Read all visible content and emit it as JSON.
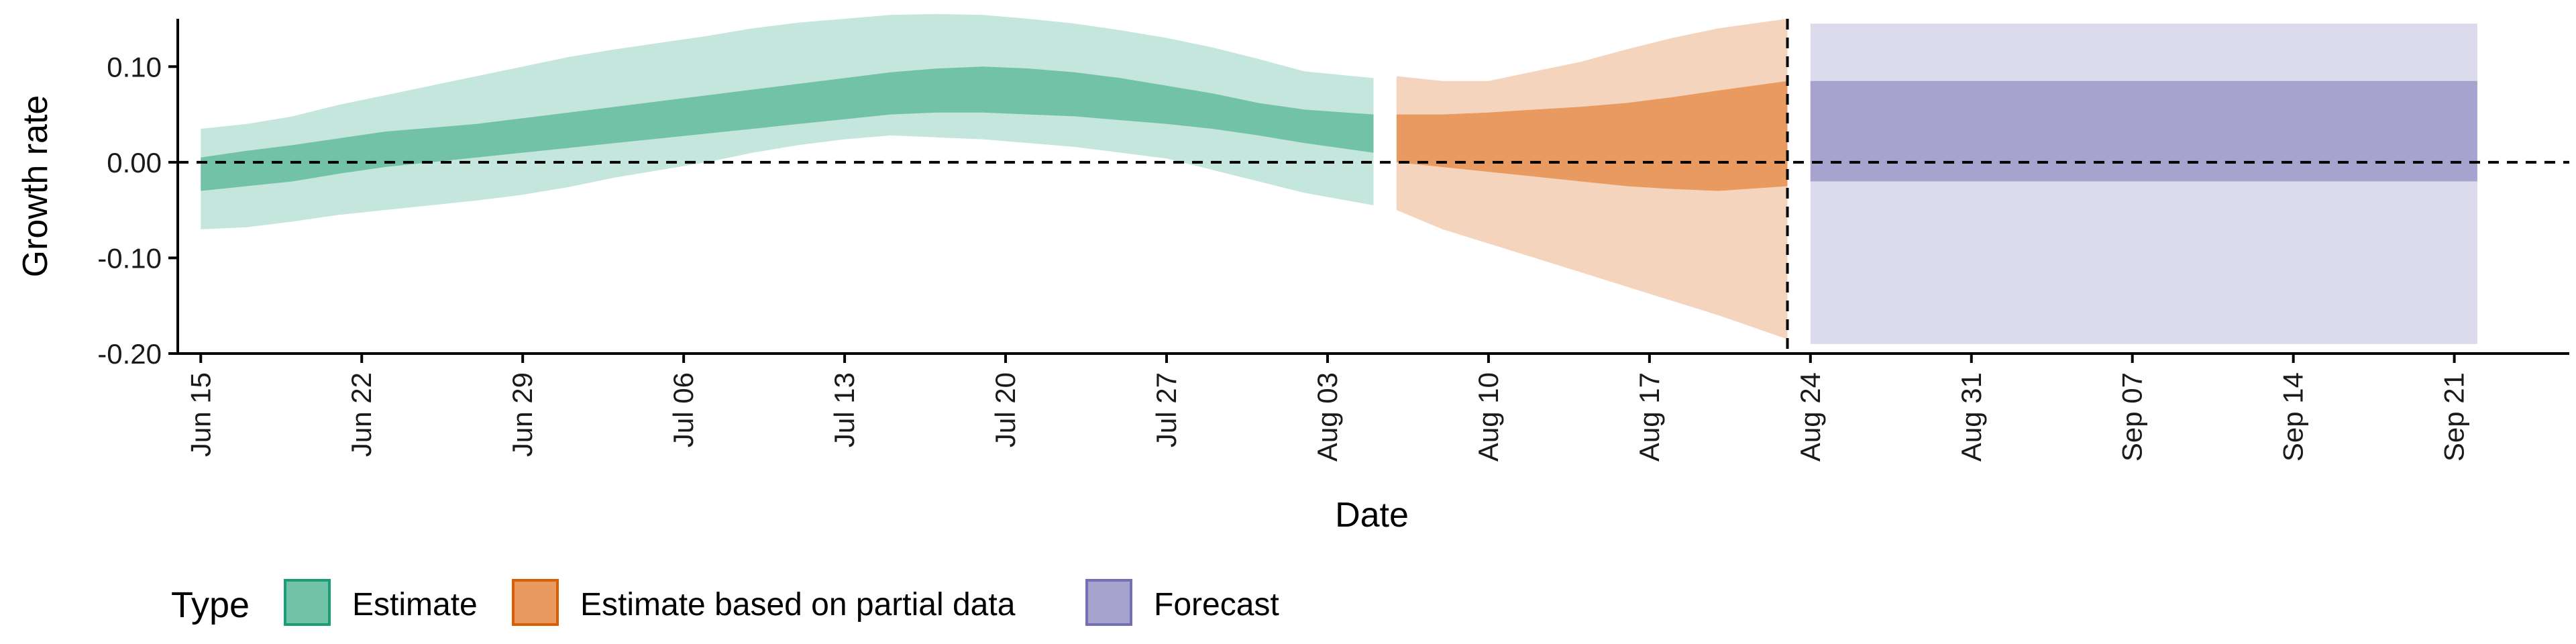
{
  "chart_data": {
    "type": "area",
    "xlabel": "Date",
    "ylabel": "Growth rate",
    "ylim": [
      -0.2,
      0.15
    ],
    "yticks": [
      -0.2,
      -0.1,
      0.0,
      0.1
    ],
    "ytick_labels": [
      "-0.20",
      "-0.10",
      "0.00",
      "0.10"
    ],
    "xticks": [
      "2020-06-15",
      "2020-06-22",
      "2020-06-29",
      "2020-07-06",
      "2020-07-13",
      "2020-07-20",
      "2020-07-27",
      "2020-08-03",
      "2020-08-10",
      "2020-08-17",
      "2020-08-24",
      "2020-08-31",
      "2020-09-07",
      "2020-09-14",
      "2020-09-21"
    ],
    "xtick_labels": [
      "Jun 15",
      "Jun 22",
      "Jun 29",
      "Jul 06",
      "Jul 13",
      "Jul 20",
      "Jul 27",
      "Aug 03",
      "Aug 10",
      "Aug 17",
      "Aug 24",
      "Aug 31",
      "Sep 07",
      "Sep 14",
      "Sep 21"
    ],
    "xlim": [
      "2020-06-14",
      "2020-09-26"
    ],
    "hline": 0,
    "vline": "2020-08-23",
    "grid": false,
    "legend_position": "bottom",
    "legend": {
      "title": "Type",
      "entries": [
        {
          "label": "Estimate",
          "fill": "#72c2a8",
          "border": "#1b9e77"
        },
        {
          "label": "Estimate based on partial data",
          "fill": "#e89a60",
          "border": "#d95f02"
        },
        {
          "label": "Forecast",
          "fill": "#a7a3cf",
          "border": "#7570b3"
        }
      ]
    },
    "series": [
      {
        "name": "Estimate",
        "outer_color": "#c4e6dc",
        "inner_color": "#72c2a8",
        "x": [
          "2020-06-15",
          "2020-06-17",
          "2020-06-19",
          "2020-06-21",
          "2020-06-23",
          "2020-06-25",
          "2020-06-27",
          "2020-06-29",
          "2020-07-01",
          "2020-07-03",
          "2020-07-05",
          "2020-07-07",
          "2020-07-09",
          "2020-07-11",
          "2020-07-13",
          "2020-07-15",
          "2020-07-17",
          "2020-07-19",
          "2020-07-21",
          "2020-07-23",
          "2020-07-25",
          "2020-07-27",
          "2020-07-29",
          "2020-07-31",
          "2020-08-02",
          "2020-08-05"
        ],
        "lower90": [
          -0.07,
          -0.068,
          -0.062,
          -0.055,
          -0.05,
          -0.045,
          -0.04,
          -0.034,
          -0.026,
          -0.016,
          -0.008,
          0.0,
          0.01,
          0.018,
          0.024,
          0.028,
          0.026,
          0.024,
          0.02,
          0.016,
          0.01,
          0.004,
          -0.008,
          -0.02,
          -0.032,
          -0.045
        ],
        "upper90": [
          0.035,
          0.04,
          0.048,
          0.06,
          0.07,
          0.08,
          0.09,
          0.1,
          0.11,
          0.118,
          0.125,
          0.132,
          0.14,
          0.146,
          0.15,
          0.154,
          0.155,
          0.154,
          0.15,
          0.145,
          0.138,
          0.13,
          0.12,
          0.108,
          0.095,
          0.088
        ],
        "lower50": [
          -0.03,
          -0.025,
          -0.02,
          -0.012,
          -0.005,
          0.0,
          0.005,
          0.01,
          0.015,
          0.02,
          0.025,
          0.03,
          0.035,
          0.04,
          0.045,
          0.05,
          0.052,
          0.052,
          0.05,
          0.048,
          0.044,
          0.04,
          0.035,
          0.028,
          0.02,
          0.01
        ],
        "upper50": [
          0.005,
          0.012,
          0.018,
          0.025,
          0.032,
          0.036,
          0.04,
          0.046,
          0.052,
          0.058,
          0.064,
          0.07,
          0.076,
          0.082,
          0.088,
          0.094,
          0.098,
          0.1,
          0.098,
          0.094,
          0.088,
          0.08,
          0.072,
          0.062,
          0.055,
          0.05
        ]
      },
      {
        "name": "Estimate based on partial data",
        "outer_color": "#f5d4bd",
        "inner_color": "#e89a60",
        "x": [
          "2020-08-06",
          "2020-08-08",
          "2020-08-10",
          "2020-08-12",
          "2020-08-14",
          "2020-08-16",
          "2020-08-18",
          "2020-08-20",
          "2020-08-23"
        ],
        "lower90": [
          -0.05,
          -0.07,
          -0.085,
          -0.1,
          -0.115,
          -0.13,
          -0.145,
          -0.16,
          -0.185
        ],
        "upper90": [
          0.09,
          0.085,
          0.085,
          0.095,
          0.105,
          0.118,
          0.13,
          0.14,
          0.15
        ],
        "lower50": [
          0.0,
          -0.005,
          -0.01,
          -0.015,
          -0.02,
          -0.025,
          -0.028,
          -0.03,
          -0.025
        ],
        "upper50": [
          0.05,
          0.05,
          0.052,
          0.055,
          0.058,
          0.062,
          0.068,
          0.075,
          0.085
        ]
      },
      {
        "name": "Forecast",
        "outer_color": "#dcdbeb",
        "inner_color": "#a7a3cf",
        "x": [
          "2020-08-24",
          "2020-09-22"
        ],
        "lower90": [
          -0.19,
          -0.19
        ],
        "upper90": [
          0.145,
          0.145
        ],
        "lower50": [
          -0.02,
          -0.02
        ],
        "upper50": [
          0.085,
          0.085
        ]
      }
    ]
  }
}
